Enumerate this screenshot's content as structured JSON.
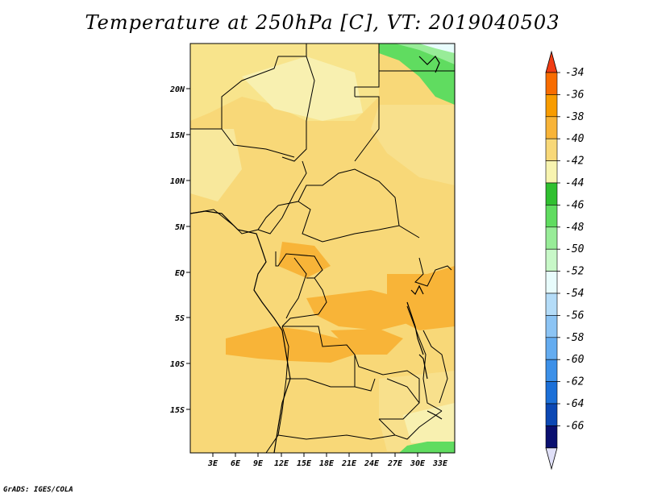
{
  "title": "Temperature at 250hPa [C], VT: 2019040503",
  "credit": "GrADS: IGES/COLA",
  "map": {
    "lat_labels": [
      "20N",
      "15N",
      "10N",
      "5N",
      "EQ",
      "5S",
      "10S",
      "15S"
    ],
    "lon_labels": [
      "3E",
      "6E",
      "9E",
      "12E",
      "15E",
      "18E",
      "21E",
      "24E",
      "27E",
      "30E",
      "33E"
    ]
  },
  "colorbar": {
    "labels": [
      "-34",
      "-36",
      "-38",
      "-40",
      "-42",
      "-44",
      "-46",
      "-48",
      "-50",
      "-52",
      "-54",
      "-56",
      "-58",
      "-60",
      "-62",
      "-64",
      "-66"
    ],
    "colors": {
      "top_arrow": "#f03c14",
      "bands": [
        "#f86c00",
        "#f89c00",
        "#f8b438",
        "#f8d878",
        "#f8f4b0",
        "#30c030",
        "#60dc60",
        "#98ec98",
        "#c8f8c8",
        "#e8fcfc",
        "#b4dcf8",
        "#8cc4f4",
        "#64acf0",
        "#3c90e8",
        "#1c70d8",
        "#0c48b4"
      ],
      "bottom_arrow": "#e0e0f8",
      "bottom_band": "#0a1070"
    }
  }
}
